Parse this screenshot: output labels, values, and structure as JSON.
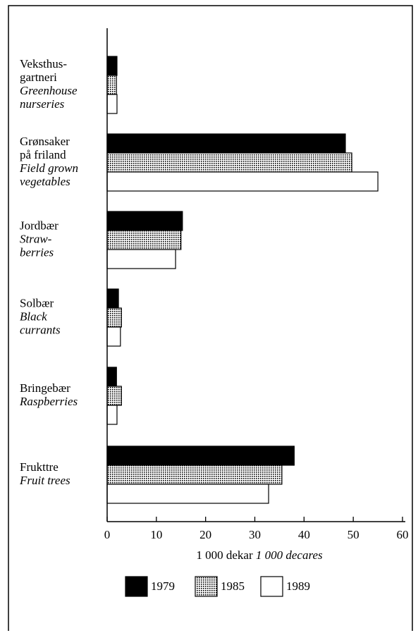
{
  "chart_data": {
    "type": "barh",
    "categories": [
      {
        "norwegian": [
          "Veksthus-",
          "gartneri"
        ],
        "english": [
          "Greenhouse",
          "nurseries"
        ]
      },
      {
        "norwegian": [
          "Grønsaker",
          "på friland"
        ],
        "english": [
          "Field grown",
          "vegetables"
        ]
      },
      {
        "norwegian": [
          "Jordbær"
        ],
        "english": [
          "Straw-",
          "berries"
        ]
      },
      {
        "norwegian": [
          "Solbær"
        ],
        "english": [
          "Black",
          "currants"
        ]
      },
      {
        "norwegian": [
          "Bringebær"
        ],
        "english": [
          "Raspberries"
        ]
      },
      {
        "norwegian": [
          "Frukttre"
        ],
        "english": [
          "Fruit trees"
        ]
      }
    ],
    "series": [
      {
        "name": "1979",
        "color": "#000000",
        "values": [
          2.0,
          48.4,
          15.3,
          2.3,
          1.9,
          38.0
        ]
      },
      {
        "name": "1985",
        "color": "#b5b5b5",
        "pattern": "dots",
        "values": [
          1.9,
          49.7,
          15.0,
          2.9,
          2.9,
          35.5
        ]
      },
      {
        "name": "1989",
        "color": "#ffffff",
        "values": [
          2.0,
          55.0,
          13.9,
          2.7,
          2.0,
          32.8
        ]
      }
    ],
    "xlabel": {
      "norwegian": "1 000 dekar",
      "english": "1 000 decares"
    },
    "xlim": [
      0,
      60
    ],
    "xticks": [
      0,
      10,
      20,
      30,
      40,
      50,
      60
    ],
    "legend": "bottom"
  }
}
